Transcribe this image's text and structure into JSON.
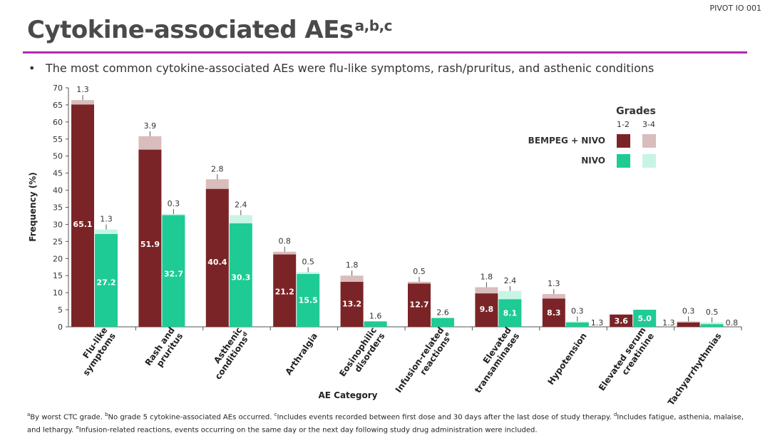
{
  "header": {
    "study_label": "PIVOT IO 001",
    "title": "Cytokine-associated AEs",
    "title_superscript": "a,b,c",
    "bullet": "The most common cytokine-associated AEs were flu-like symptoms, rash/pruritus, and asthenic conditions"
  },
  "legend": {
    "title": "Grades",
    "col1": "1-2",
    "col2": "3-4",
    "placement": "top-right"
  },
  "colors": {
    "bempeg_low": "#7b2427",
    "bempeg_high": "#d9bcbc",
    "nivo_low": "#1ecb94",
    "nivo_high": "#c7f5e4",
    "accent_rule": "#b12ab3"
  },
  "chart_data": {
    "type": "bar",
    "stacked": true,
    "xlabel": "AE Category",
    "ylabel": "Frequency (%)",
    "ylim": [
      0,
      70
    ],
    "yticks": [
      0,
      5,
      10,
      15,
      20,
      25,
      30,
      35,
      40,
      45,
      50,
      55,
      60,
      65,
      70
    ],
    "grid": false,
    "categories": [
      {
        "label": "Flu-like symptoms",
        "lines": [
          "Flu-like",
          "symptoms"
        ],
        "sup": ""
      },
      {
        "label": "Rash and pruritus",
        "lines": [
          "Rash and",
          "pruritus"
        ],
        "sup": ""
      },
      {
        "label": "Asthenic conditions",
        "lines": [
          "Asthenic",
          "conditions"
        ],
        "sup": "d"
      },
      {
        "label": "Arthralgia",
        "lines": [
          "Arthralgia"
        ],
        "sup": ""
      },
      {
        "label": "Eosinophilic disorders",
        "lines": [
          "Eosinophilic",
          "disorders"
        ],
        "sup": ""
      },
      {
        "label": "Infusion-related reactions",
        "lines": [
          "Infusion-related",
          "reactions"
        ],
        "sup": "e"
      },
      {
        "label": "Elevated transaminases",
        "lines": [
          "Elevated",
          "transaminases"
        ],
        "sup": ""
      },
      {
        "label": "Hypotension",
        "lines": [
          "Hypotension"
        ],
        "sup": ""
      },
      {
        "label": "Elevated serum creatinine",
        "lines": [
          "Elevated serum",
          "creatinine"
        ],
        "sup": ""
      },
      {
        "label": "Tachyarrhythmias",
        "lines": [
          "Tachyarrhythmias"
        ],
        "sup": ""
      }
    ],
    "series": [
      {
        "name": "BEMPEG + NIVO",
        "grade_1_2": [
          65.1,
          51.9,
          40.4,
          21.2,
          13.2,
          12.7,
          9.8,
          8.3,
          3.6,
          1.3
        ],
        "grade_3_4": [
          1.3,
          3.9,
          2.8,
          0.8,
          1.8,
          0.5,
          1.8,
          1.3,
          null,
          0.3
        ]
      },
      {
        "name": "NIVO",
        "grade_1_2": [
          27.2,
          32.7,
          30.3,
          15.5,
          1.6,
          2.6,
          8.1,
          1.3,
          5.0,
          0.8
        ],
        "grade_3_4": [
          1.3,
          0.3,
          2.4,
          0.5,
          null,
          null,
          2.4,
          0.3,
          null,
          0.5
        ]
      }
    ]
  },
  "footnote": {
    "a_mark": "a",
    "a_text": "By worst CTC grade. ",
    "b_mark": "b",
    "b_text": "No grade 5 cytokine-associated AEs occurred. ",
    "c_mark": "c",
    "c_text": "Includes events recorded between first dose and 30 days after the last dose of study therapy. ",
    "d_mark": "d",
    "d_text": "Includes fatigue, asthenia, malaise, and lethargy. ",
    "e_mark": "e",
    "e_text": "Infusion-related reactions, events occurring on the same day or the next day following study drug administration were included."
  }
}
